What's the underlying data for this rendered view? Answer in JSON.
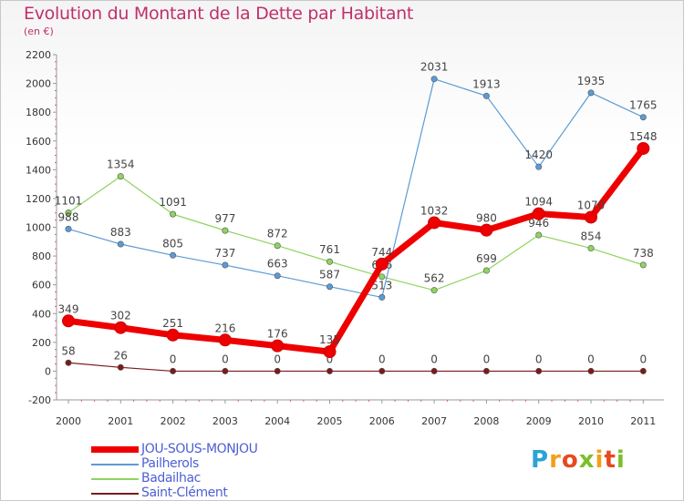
{
  "header": {
    "title": "Evolution du Montant de la Dette par Habitant",
    "subtitle": "(en €)"
  },
  "logo": {
    "text": "Proxiti"
  },
  "chart_data": {
    "type": "line",
    "title": "Evolution du Montant de la Dette par Habitant",
    "subtitle": "(en €)",
    "x": [
      "2000",
      "2001",
      "2002",
      "2003",
      "2004",
      "2005",
      "2006",
      "2007",
      "2008",
      "2009",
      "2010",
      "2011"
    ],
    "yticks": [
      "-200",
      "0",
      "200",
      "400",
      "600",
      "800",
      "1000",
      "1200",
      "1400",
      "1600",
      "1800",
      "2000",
      "2200"
    ],
    "ylim": [
      -200,
      2200
    ],
    "grid": false,
    "legend_position": "bottom-left",
    "series": [
      {
        "name": "JOU-SOUS-MONJOU",
        "color": "#ee0000",
        "values": [
          349,
          302,
          251,
          216,
          176,
          135,
          744,
          1032,
          980,
          1094,
          1070,
          1548
        ],
        "labels": [
          "349",
          "302",
          "251",
          "216",
          "176",
          "135",
          "744",
          "1032",
          "980",
          "1094",
          "1070",
          "1548"
        ]
      },
      {
        "name": "Pailherols",
        "color": "#5b9bd5",
        "values": [
          988,
          883,
          805,
          737,
          663,
          587,
          513,
          2031,
          1913,
          1420,
          1935,
          1765
        ],
        "labels": [
          "988",
          "883",
          "805",
          "737",
          "663",
          "587",
          "513",
          "2031",
          "1913",
          "1420",
          "1935",
          "1765"
        ]
      },
      {
        "name": "Badailhac",
        "color": "#8fd460",
        "values": [
          1101,
          1354,
          1091,
          977,
          872,
          761,
          656,
          562,
          699,
          946,
          854,
          738
        ],
        "labels": [
          "1101",
          "1354",
          "1091",
          "977",
          "872",
          "761",
          "656",
          "562",
          "699",
          "946",
          "854",
          "738"
        ]
      },
      {
        "name": "Saint-Clément",
        "color": "#7a1a1a",
        "values": [
          58,
          26,
          0,
          0,
          0,
          0,
          0,
          0,
          0,
          0,
          0,
          0
        ],
        "labels": [
          "58",
          "26",
          "0",
          "0",
          "0",
          "0",
          "0",
          "0",
          "0",
          "0",
          "0",
          "0"
        ]
      }
    ]
  }
}
